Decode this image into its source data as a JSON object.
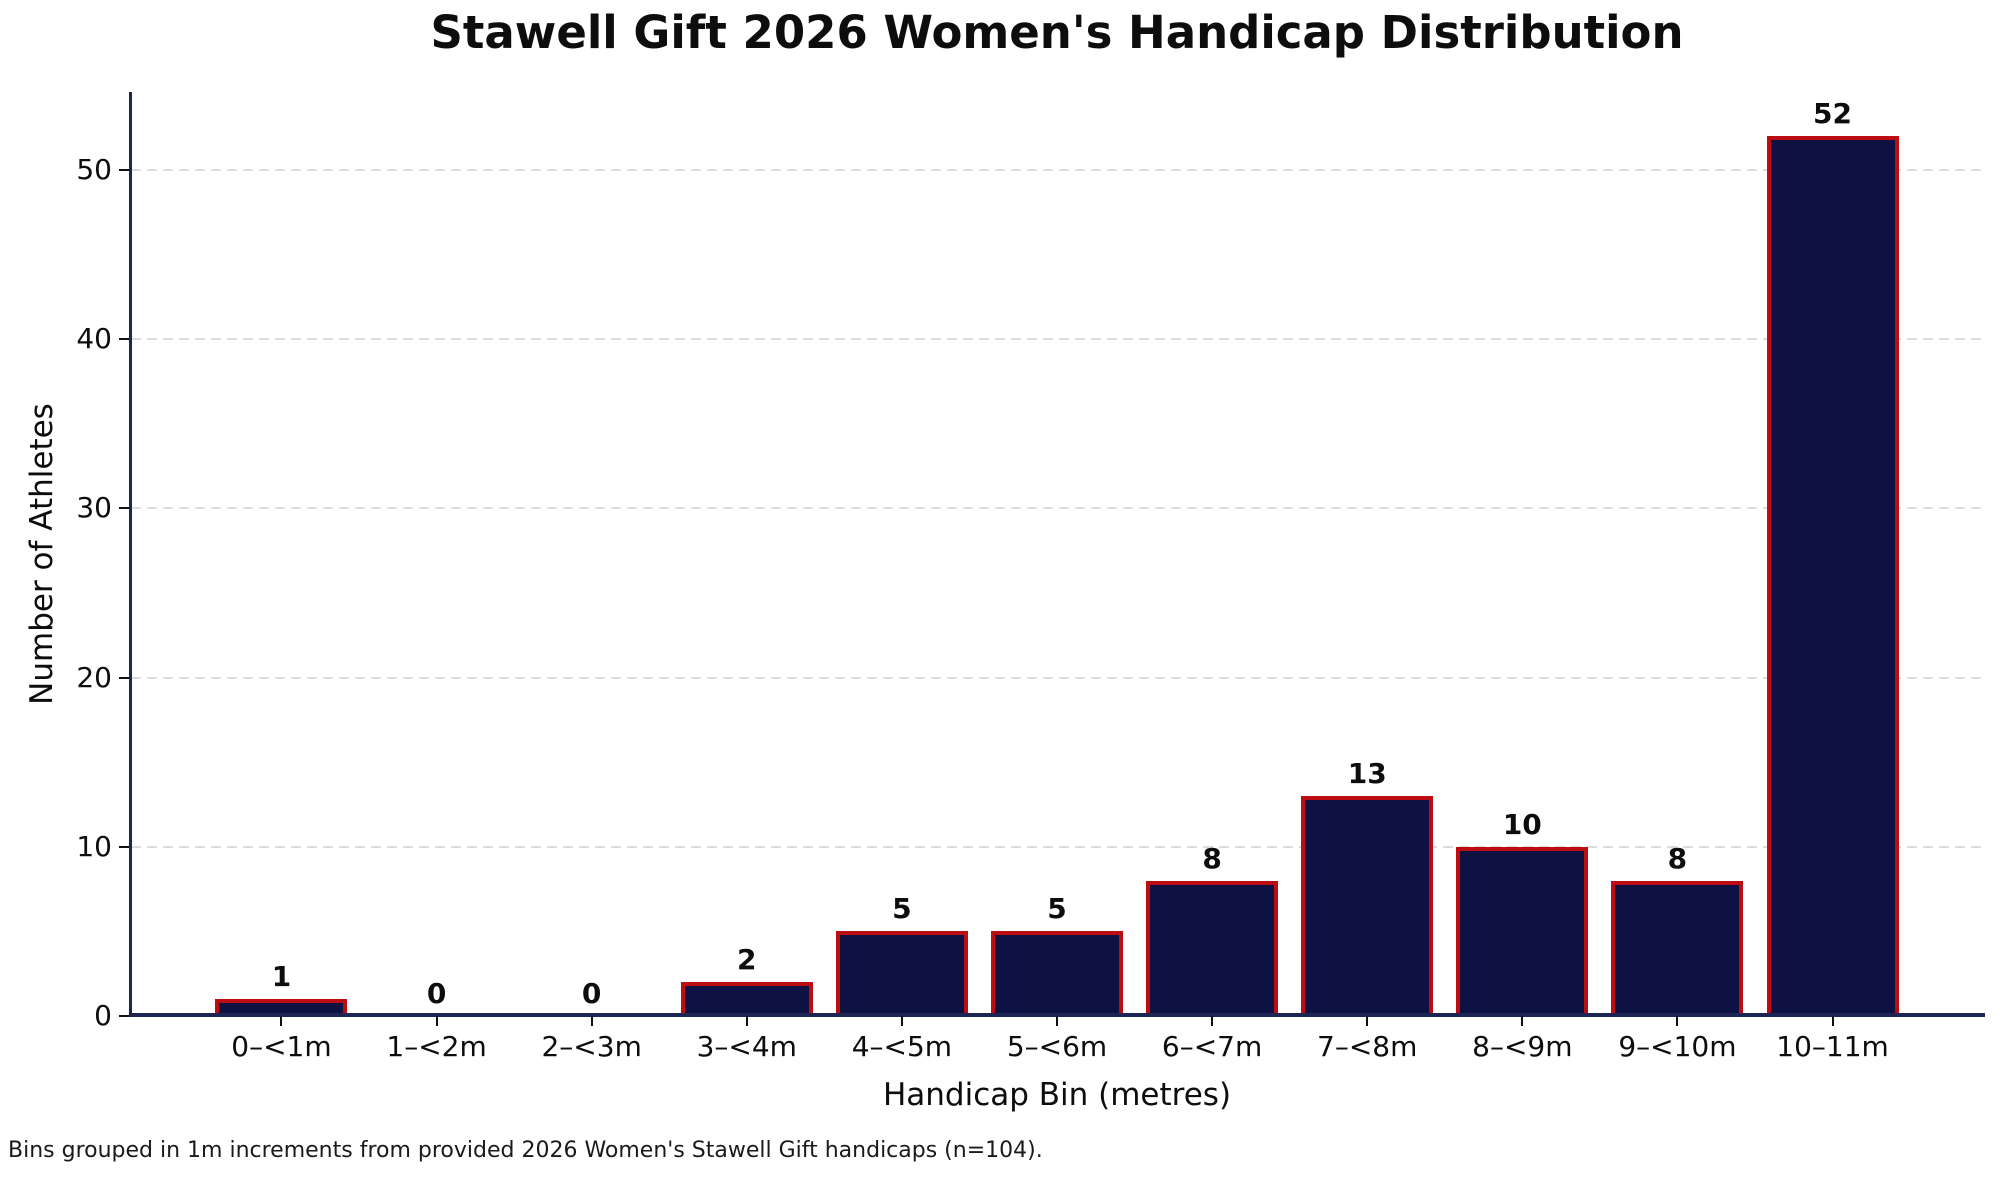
{
  "title": "Stawell Gift 2026 Women's Handicap Distribution",
  "footnote": "Bins grouped in 1m increments from provided 2026 Women's Stawell Gift handicaps (n=104).",
  "chart_data": {
    "type": "bar",
    "title": "Stawell Gift 2026 Women's Handicap Distribution",
    "xlabel": "Handicap Bin (metres)",
    "ylabel": "Number of Athletes",
    "categories": [
      "0–<1m",
      "1–<2m",
      "2–<3m",
      "3–<4m",
      "4–<5m",
      "5–<6m",
      "6–<7m",
      "7–<8m",
      "8–<9m",
      "9–<10m",
      "10–11m"
    ],
    "values": [
      1,
      0,
      0,
      2,
      5,
      5,
      8,
      13,
      10,
      8,
      52
    ],
    "total_n": 104,
    "yticks": [
      0,
      10,
      20,
      30,
      40,
      50
    ],
    "ylim": [
      0,
      54.6
    ],
    "grid": "horizontal-dashed",
    "legend": "none",
    "bar_labels_shown": true,
    "colors": {
      "bar_fill": "#0e1243",
      "bar_edge": "#bb0d12",
      "spine": "#1c2554",
      "gridline": "#dcdcdc",
      "text": "#0d0d0d"
    }
  }
}
